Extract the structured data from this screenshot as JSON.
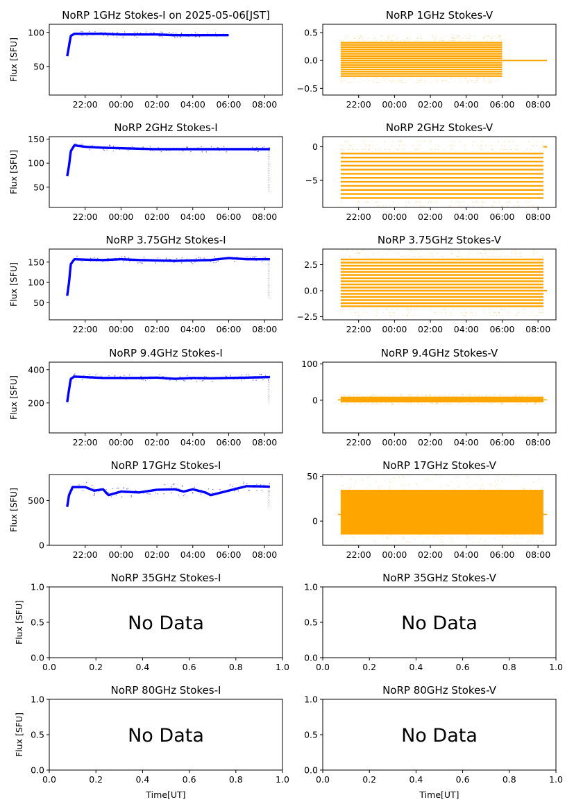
{
  "chart_data": [
    {
      "type": "scatter",
      "title": "NoRP 1GHz Stokes-I on 2025-05-06[JST]",
      "ylabel": "Flux [SFU]",
      "xlabel": "",
      "xlim": [
        20.0,
        33.0
      ],
      "ylim": [
        8,
        112
      ],
      "yticks": [
        50,
        100
      ],
      "xticks": [
        22,
        24,
        26,
        28,
        30,
        32
      ],
      "xtick_labels": [
        "22:00",
        "00:00",
        "02:00",
        "04:00",
        "06:00",
        "08:00"
      ],
      "color": "#0000ff",
      "has_data": true,
      "x_start": 21.0,
      "x_end": 30.0,
      "profile": [
        [
          21.0,
          65
        ],
        [
          21.1,
          80
        ],
        [
          21.2,
          95
        ],
        [
          21.4,
          98
        ],
        [
          22,
          98
        ],
        [
          23,
          98
        ],
        [
          24,
          97
        ],
        [
          25,
          97
        ],
        [
          26,
          97
        ],
        [
          27,
          96
        ],
        [
          28,
          96
        ],
        [
          29,
          96
        ],
        [
          30,
          96
        ]
      ],
      "spread": 2
    },
    {
      "type": "scatter",
      "title": "NoRP 1GHz Stokes-V",
      "ylabel": "",
      "xlabel": "",
      "xlim": [
        20.0,
        33.0
      ],
      "ylim": [
        -0.62,
        0.65
      ],
      "yticks": [
        -0.5,
        0.0,
        0.5
      ],
      "ytick_labels": [
        "−0.5",
        "0.0",
        "0.5"
      ],
      "xticks": [
        22,
        24,
        26,
        28,
        30,
        32
      ],
      "xtick_labels": [
        "22:00",
        "00:00",
        "02:00",
        "04:00",
        "06:00",
        "08:00"
      ],
      "color": "#ffa500",
      "has_data": true,
      "x_start": 21.0,
      "x_end": 30.0,
      "tail_end": 32.5,
      "band_levels": [
        -0.28,
        -0.24,
        -0.2,
        -0.16,
        -0.12,
        -0.08,
        -0.04,
        0.0,
        0.04,
        0.08,
        0.12,
        0.16,
        0.2,
        0.24,
        0.28,
        0.32
      ]
    },
    {
      "type": "scatter",
      "title": "NoRP 2GHz Stokes-I",
      "ylabel": "Flux [SFU]",
      "xlabel": "",
      "xlim": [
        20.0,
        33.0
      ],
      "ylim": [
        8,
        155
      ],
      "yticks": [
        50,
        100,
        150
      ],
      "xticks": [
        22,
        24,
        26,
        28,
        30,
        32
      ],
      "xtick_labels": [
        "22:00",
        "00:00",
        "02:00",
        "04:00",
        "06:00",
        "08:00"
      ],
      "color": "#0000ff",
      "has_data": true,
      "x_start": 21.0,
      "x_end": 32.3,
      "profile": [
        [
          21.0,
          73
        ],
        [
          21.1,
          95
        ],
        [
          21.2,
          125
        ],
        [
          21.4,
          137
        ],
        [
          22,
          134
        ],
        [
          23,
          132
        ],
        [
          24,
          131
        ],
        [
          25,
          130
        ],
        [
          26,
          129
        ],
        [
          27,
          129
        ],
        [
          28,
          129
        ],
        [
          29,
          129
        ],
        [
          30,
          129
        ],
        [
          31,
          129
        ],
        [
          32.3,
          129
        ]
      ],
      "spread": 3,
      "drop_at": 32.25,
      "drop_to": 40
    },
    {
      "type": "scatter",
      "title": "NoRP 2GHz Stokes-V",
      "ylabel": "",
      "xlabel": "",
      "xlim": [
        20.0,
        33.0
      ],
      "ylim": [
        -9.0,
        1.5
      ],
      "yticks": [
        -5,
        0
      ],
      "ytick_labels": [
        "−5",
        "0"
      ],
      "xticks": [
        22,
        24,
        26,
        28,
        30,
        32
      ],
      "xtick_labels": [
        "22:00",
        "00:00",
        "02:00",
        "04:00",
        "06:00",
        "08:00"
      ],
      "color": "#ffa500",
      "has_data": true,
      "x_start": 21.0,
      "x_end": 32.3,
      "tail_end": 32.5,
      "band_levels": [
        -7.6,
        -7.0,
        -6.4,
        -5.8,
        -5.2,
        -4.6,
        -4.0,
        -3.4,
        -2.8,
        -2.2,
        -1.6,
        -1.0
      ]
    },
    {
      "type": "scatter",
      "title": "NoRP 3.75GHz Stokes-I",
      "ylabel": "Flux [SFU]",
      "xlabel": "",
      "xlim": [
        20.0,
        33.0
      ],
      "ylim": [
        8,
        182
      ],
      "yticks": [
        50,
        100,
        150
      ],
      "xticks": [
        22,
        24,
        26,
        28,
        30,
        32
      ],
      "xtick_labels": [
        "22:00",
        "00:00",
        "02:00",
        "04:00",
        "06:00",
        "08:00"
      ],
      "color": "#0000ff",
      "has_data": true,
      "x_start": 21.0,
      "x_end": 32.3,
      "profile": [
        [
          21.0,
          67
        ],
        [
          21.1,
          100
        ],
        [
          21.2,
          145
        ],
        [
          21.4,
          157
        ],
        [
          22,
          156
        ],
        [
          23,
          155
        ],
        [
          24,
          157
        ],
        [
          25,
          155
        ],
        [
          26,
          154
        ],
        [
          27,
          153
        ],
        [
          28,
          154
        ],
        [
          29,
          155
        ],
        [
          30,
          160
        ],
        [
          31,
          157
        ],
        [
          32.3,
          157
        ]
      ],
      "spread": 4,
      "drop_at": 32.25,
      "drop_to": 62
    },
    {
      "type": "scatter",
      "title": "NoRP 3.75GHz Stokes-V",
      "ylabel": "",
      "xlabel": "",
      "xlim": [
        20.0,
        33.0
      ],
      "ylim": [
        -2.8,
        4.0
      ],
      "yticks": [
        -2.5,
        0.0,
        2.5
      ],
      "ytick_labels": [
        "−2.5",
        "0.0",
        "2.5"
      ],
      "xticks": [
        22,
        24,
        26,
        28,
        30,
        32
      ],
      "xtick_labels": [
        "22:00",
        "00:00",
        "02:00",
        "04:00",
        "06:00",
        "08:00"
      ],
      "color": "#ffa500",
      "has_data": true,
      "x_start": 21.0,
      "x_end": 32.3,
      "tail_end": 32.5,
      "band_levels": [
        -1.5,
        -1.2,
        -0.9,
        -0.6,
        -0.3,
        0.0,
        0.3,
        0.6,
        0.9,
        1.2,
        1.5,
        1.8,
        2.1,
        2.4,
        2.7,
        3.0
      ]
    },
    {
      "type": "scatter",
      "title": "NoRP 9.4GHz Stokes-I",
      "ylabel": "Flux [SFU]",
      "xlabel": "",
      "xlim": [
        20.0,
        33.0
      ],
      "ylim": [
        20,
        445
      ],
      "yticks": [
        200,
        400
      ],
      "xticks": [
        22,
        24,
        26,
        28,
        30,
        32
      ],
      "xtick_labels": [
        "22:00",
        "00:00",
        "02:00",
        "04:00",
        "06:00",
        "08:00"
      ],
      "color": "#0000ff",
      "has_data": true,
      "x_start": 21.0,
      "x_end": 32.3,
      "profile": [
        [
          21.0,
          205
        ],
        [
          21.1,
          280
        ],
        [
          21.2,
          345
        ],
        [
          21.4,
          358
        ],
        [
          22,
          355
        ],
        [
          23,
          350
        ],
        [
          24,
          350
        ],
        [
          25,
          350
        ],
        [
          26,
          352
        ],
        [
          27,
          345
        ],
        [
          28,
          350
        ],
        [
          29,
          348
        ],
        [
          30,
          350
        ],
        [
          31,
          352
        ],
        [
          32.3,
          355
        ]
      ],
      "spread": 10,
      "drop_at": 32.25,
      "drop_to": 200
    },
    {
      "type": "scatter",
      "title": "NoRP 9.4GHz Stokes-V",
      "ylabel": "",
      "xlabel": "",
      "xlim": [
        20.0,
        33.0
      ],
      "ylim": [
        -90,
        105
      ],
      "yticks": [
        0,
        100
      ],
      "ytick_labels": [
        "0",
        "100"
      ],
      "xticks": [
        22,
        24,
        26,
        28,
        30,
        32
      ],
      "xtick_labels": [
        "22:00",
        "00:00",
        "02:00",
        "04:00",
        "06:00",
        "08:00"
      ],
      "color": "#ffa500",
      "has_data": true,
      "x_start": 21.0,
      "x_end": 32.3,
      "tail_end": 32.5,
      "band_center": 2,
      "band_half": 8
    },
    {
      "type": "scatter",
      "title": "NoRP 17GHz Stokes-I",
      "ylabel": "Flux [SFU]",
      "xlabel": "",
      "xlim": [
        20.0,
        33.0
      ],
      "ylim": [
        0,
        790
      ],
      "yticks": [
        0,
        500
      ],
      "xticks": [
        22,
        24,
        26,
        28,
        30,
        32
      ],
      "xtick_labels": [
        "22:00",
        "00:00",
        "02:00",
        "04:00",
        "06:00",
        "08:00"
      ],
      "color": "#0000ff",
      "has_data": true,
      "x_start": 21.0,
      "x_end": 32.3,
      "profile": [
        [
          21.0,
          430
        ],
        [
          21.1,
          560
        ],
        [
          21.3,
          650
        ],
        [
          22,
          650
        ],
        [
          22.5,
          610
        ],
        [
          23,
          625
        ],
        [
          23.3,
          560
        ],
        [
          24,
          600
        ],
        [
          25,
          590
        ],
        [
          26,
          620
        ],
        [
          27,
          625
        ],
        [
          27.5,
          600
        ],
        [
          28,
          625
        ],
        [
          28.7,
          590
        ],
        [
          29,
          560
        ],
        [
          30,
          610
        ],
        [
          31,
          660
        ],
        [
          32.3,
          655
        ]
      ],
      "spread": 30,
      "drop_at": 32.25,
      "drop_to": 430
    },
    {
      "type": "scatter",
      "title": "NoRP 17GHz Stokes-V",
      "ylabel": "",
      "xlabel": "",
      "xlim": [
        20.0,
        33.0
      ],
      "ylim": [
        -27,
        52
      ],
      "yticks": [
        0,
        50
      ],
      "ytick_labels": [
        "0",
        "50"
      ],
      "xticks": [
        22,
        24,
        26,
        28,
        30,
        32
      ],
      "xtick_labels": [
        "22:00",
        "00:00",
        "02:00",
        "04:00",
        "06:00",
        "08:00"
      ],
      "color": "#ffa500",
      "has_data": true,
      "x_start": 21.0,
      "x_end": 32.3,
      "tail_end": 32.5,
      "band_center": 10,
      "band_half": 25
    },
    {
      "type": "scatter",
      "title": "NoRP 35GHz Stokes-I",
      "ylabel": "Flux [SFU]",
      "xlabel": "",
      "xlim": [
        0,
        1
      ],
      "ylim": [
        0,
        1
      ],
      "yticks": [
        0.0,
        0.5,
        1.0
      ],
      "ytick_labels": [
        "0.0",
        "0.5",
        "1.0"
      ],
      "xticks": [
        0.0,
        0.2,
        0.4,
        0.6,
        0.8,
        1.0
      ],
      "xtick_labels": [
        "0.0",
        "0.2",
        "0.4",
        "0.6",
        "0.8",
        "1.0"
      ],
      "has_data": false,
      "annotation": "No Data"
    },
    {
      "type": "scatter",
      "title": "NoRP 35GHz Stokes-V",
      "ylabel": "",
      "xlabel": "",
      "xlim": [
        0,
        1
      ],
      "ylim": [
        0,
        1
      ],
      "yticks": [
        0.0,
        0.5,
        1.0
      ],
      "ytick_labels": [
        "0.0",
        "0.5",
        "1.0"
      ],
      "xticks": [
        0.0,
        0.2,
        0.4,
        0.6,
        0.8,
        1.0
      ],
      "xtick_labels": [
        "0.0",
        "0.2",
        "0.4",
        "0.6",
        "0.8",
        "1.0"
      ],
      "has_data": false,
      "annotation": "No Data"
    },
    {
      "type": "scatter",
      "title": "NoRP 80GHz Stokes-I",
      "ylabel": "Flux [SFU]",
      "xlabel": "Time[UT]",
      "xlim": [
        0,
        1
      ],
      "ylim": [
        0,
        1
      ],
      "yticks": [
        0.0,
        0.5,
        1.0
      ],
      "ytick_labels": [
        "0.0",
        "0.5",
        "1.0"
      ],
      "xticks": [
        0.0,
        0.2,
        0.4,
        0.6,
        0.8,
        1.0
      ],
      "xtick_labels": [
        "0.0",
        "0.2",
        "0.4",
        "0.6",
        "0.8",
        "1.0"
      ],
      "has_data": false,
      "annotation": "No Data"
    },
    {
      "type": "scatter",
      "title": "NoRP 80GHz Stokes-V",
      "ylabel": "",
      "xlabel": "Time[UT]",
      "xlim": [
        0,
        1
      ],
      "ylim": [
        0,
        1
      ],
      "yticks": [
        0.0,
        0.5,
        1.0
      ],
      "ytick_labels": [
        "0.0",
        "0.5",
        "1.0"
      ],
      "xticks": [
        0.0,
        0.2,
        0.4,
        0.6,
        0.8,
        1.0
      ],
      "xtick_labels": [
        "0.0",
        "0.2",
        "0.4",
        "0.6",
        "0.8",
        "1.0"
      ],
      "has_data": false,
      "annotation": "No Data"
    }
  ],
  "colors": {
    "stokes_i": "#0000ff",
    "stokes_v": "#ffa500",
    "axis": "#000000",
    "background": "#ffffff"
  }
}
